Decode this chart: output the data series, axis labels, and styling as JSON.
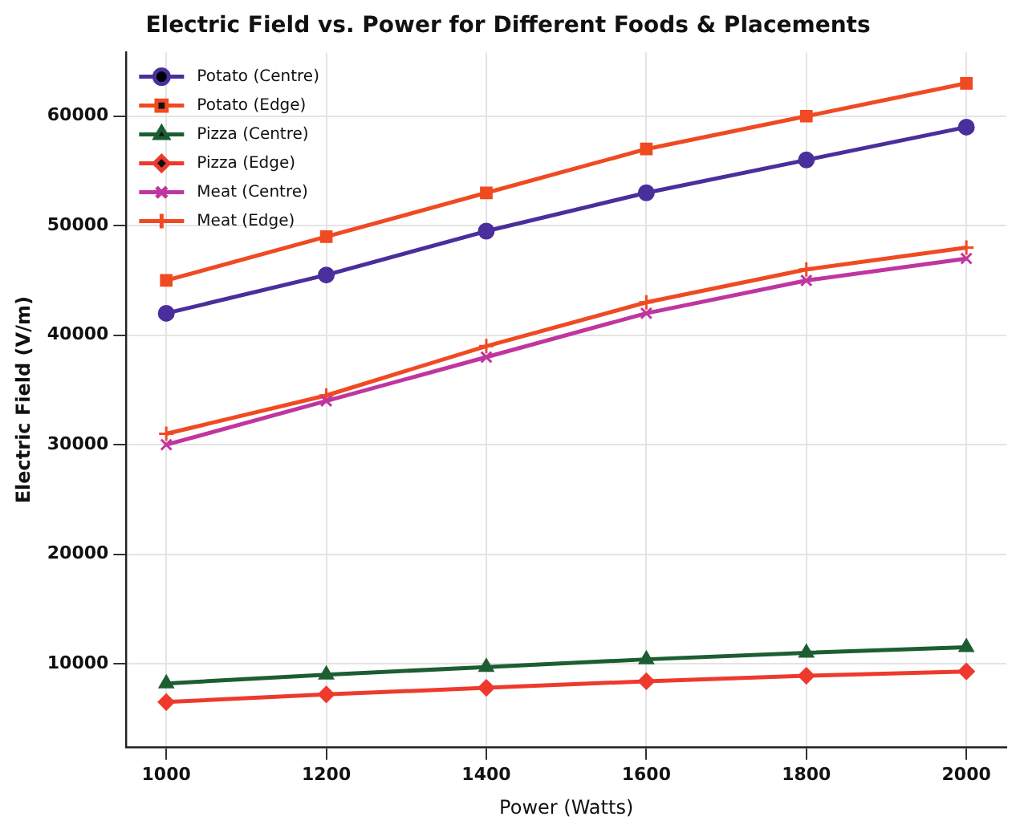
{
  "chart_data": {
    "type": "line",
    "title": "Electric Field vs. Power for Different Foods & Placements",
    "xlabel": "Power (Watts)",
    "ylabel": "Electric Field (V/m)",
    "x": [
      1000,
      1200,
      1400,
      1600,
      1800,
      2000
    ],
    "series": [
      {
        "name": "Potato (Centre)",
        "color": "#4a2f9c",
        "marker": "circle",
        "values": [
          42000,
          45500,
          49500,
          53000,
          56000,
          59000
        ]
      },
      {
        "name": "Potato (Edge)",
        "color": "#f04a22",
        "marker": "square",
        "values": [
          45000,
          49000,
          53000,
          57000,
          60000,
          63000
        ]
      },
      {
        "name": "Pizza (Centre)",
        "color": "#1c5e32",
        "marker": "triangle",
        "values": [
          8200,
          9000,
          9700,
          10400,
          11000,
          11500
        ]
      },
      {
        "name": "Pizza (Edge)",
        "color": "#ee3a2c",
        "marker": "diamond",
        "values": [
          6500,
          7200,
          7800,
          8400,
          8900,
          9300
        ]
      },
      {
        "name": "Meat (Centre)",
        "color": "#c0359f",
        "marker": "cross",
        "values": [
          30000,
          34000,
          38000,
          42000,
          45000,
          47000
        ]
      },
      {
        "name": "Meat (Edge)",
        "color": "#f04a22",
        "marker": "plus",
        "values": [
          31000,
          34500,
          39000,
          43000,
          46000,
          48000
        ]
      }
    ],
    "xlim": [
      950,
      2050
    ],
    "xticks": [
      1000,
      1200,
      1400,
      1600,
      1800,
      2000
    ],
    "ylim": [
      2400,
      65800
    ],
    "yticks": [
      10000,
      20000,
      30000,
      40000,
      50000,
      60000
    ],
    "grid": true,
    "legend": "top left",
    "line_style": "solid"
  }
}
